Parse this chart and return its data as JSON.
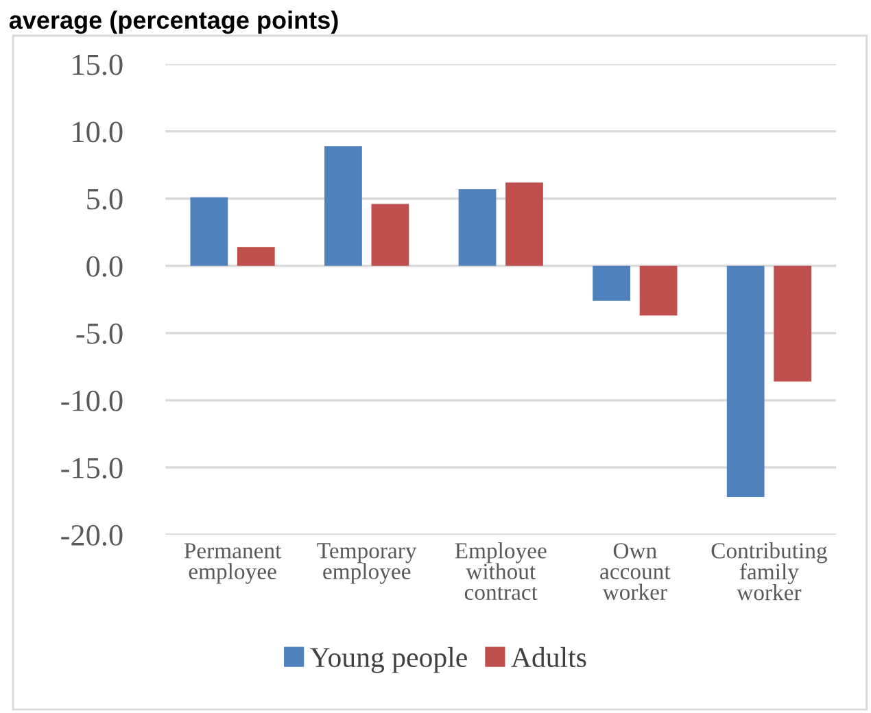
{
  "chart_data": {
    "type": "bar",
    "title": "average (percentage points)",
    "categories": [
      "Permanent\nemployee",
      "Temporary\nemployee",
      "Employee\nwithout\ncontract",
      "Own\naccount\nworker",
      "Contributing\nfamily\nworker"
    ],
    "series": [
      {
        "name": "Young people",
        "color": "#4f81bd",
        "values": [
          5.1,
          8.9,
          5.7,
          -2.6,
          -17.2
        ]
      },
      {
        "name": "Adults",
        "color": "#c0504d",
        "values": [
          1.4,
          4.6,
          6.2,
          -3.7,
          -8.6
        ]
      }
    ],
    "ylim": [
      -20,
      15
    ],
    "yticks": [
      {
        "value": -20,
        "label": "-20.0"
      },
      {
        "value": -15,
        "label": "-15.0"
      },
      {
        "value": -10,
        "label": "-10.0"
      },
      {
        "value": -5,
        "label": "-5.0"
      },
      {
        "value": 0,
        "label": "0.0"
      },
      {
        "value": 5,
        "label": "5.0"
      },
      {
        "value": 10,
        "label": "10.0"
      },
      {
        "value": 15,
        "label": "15.0"
      }
    ],
    "grid": "y",
    "legend": "bottom"
  }
}
